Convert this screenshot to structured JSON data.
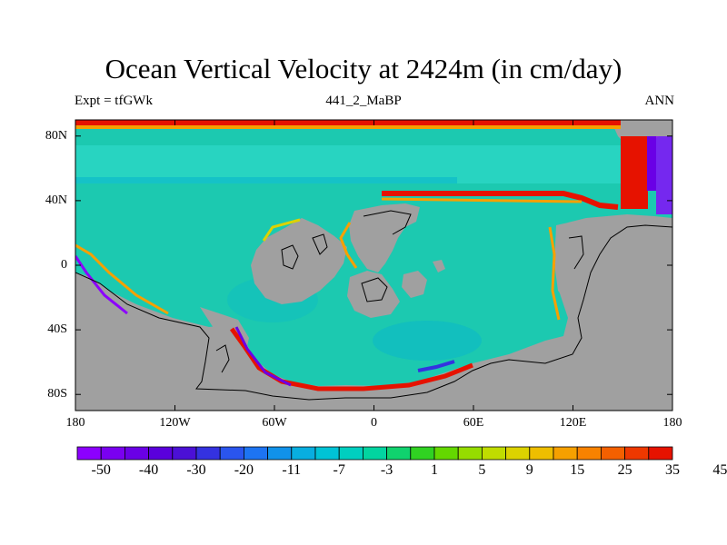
{
  "title": "Ocean Vertical Velocity at 2424m (in cm/day)",
  "left_label": "Expt = tfGWk",
  "center_label": "441_2_MaBP",
  "right_label": "ANN",
  "y_axis": {
    "ticks": [
      {
        "value": 80,
        "label": "80N"
      },
      {
        "value": 40,
        "label": "40N"
      },
      {
        "value": 0,
        "label": "0"
      },
      {
        "value": -40,
        "label": "40S"
      },
      {
        "value": -80,
        "label": "80S"
      }
    ],
    "range": [
      -90,
      90
    ]
  },
  "x_axis": {
    "ticks": [
      {
        "value": -180,
        "label": "180"
      },
      {
        "value": -120,
        "label": "120W"
      },
      {
        "value": -60,
        "label": "60W"
      },
      {
        "value": 0,
        "label": "0"
      },
      {
        "value": 60,
        "label": "60E"
      },
      {
        "value": 120,
        "label": "120E"
      },
      {
        "value": 180,
        "label": "180"
      }
    ],
    "range": [
      -180,
      180
    ]
  },
  "colorbar": {
    "colors": [
      "#8c00ff",
      "#7a00f0",
      "#6a00e6",
      "#5a00dc",
      "#4b10d6",
      "#3432e0",
      "#2a55ee",
      "#1d74f2",
      "#1192ea",
      "#08aee0",
      "#00c3d6",
      "#00cfc0",
      "#02d4a0",
      "#10d26e",
      "#30d222",
      "#64d800",
      "#96dc00",
      "#c0dc00",
      "#dcd200",
      "#eebe00",
      "#f6a000",
      "#f88200",
      "#f46000",
      "#ee3800",
      "#e61200"
    ],
    "labels": [
      "-50",
      "-40",
      "-30",
      "-20",
      "-11",
      "-7",
      "-3",
      "1",
      "5",
      "9",
      "15",
      "25",
      "35",
      "45"
    ]
  },
  "colors": {
    "land": "#a0a0a0",
    "ocean_base": "#1cc9b0",
    "ocean_light": "#2ad6c4",
    "ocean_dark": "#08b6cc"
  }
}
